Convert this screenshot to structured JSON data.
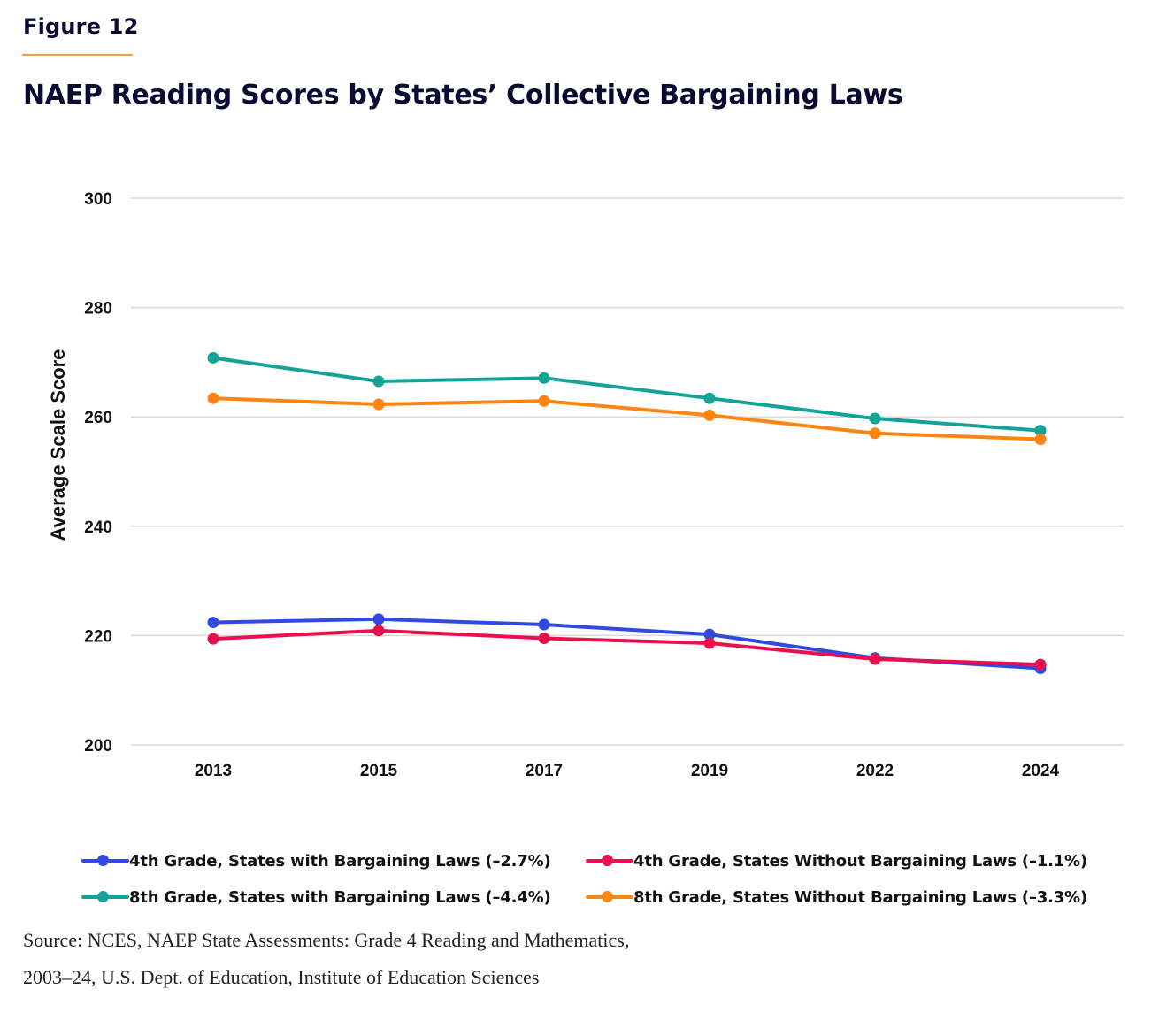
{
  "figure_label": "Figure 12",
  "title": "NAEP Reading Scores by States’ Collective Bargaining Laws",
  "source_lines": [
    "Source: NCES, NAEP State Assessments: Grade 4 Reading and Mathematics,",
    "2003–24, U.S. Dept. of Education, Institute of Education Sciences"
  ],
  "colors": {
    "grid": "#d9d9d9",
    "accent_rule": "#f0a040"
  },
  "chart_data": {
    "type": "line",
    "title": "NAEP Reading Scores by States’ Collective Bargaining Laws",
    "xlabel": "",
    "ylabel": "Average Scale Score",
    "x": [
      "2013",
      "2015",
      "2017",
      "2019",
      "2022",
      "2024"
    ],
    "ylim": [
      200,
      300
    ],
    "yticks": [
      200,
      220,
      240,
      260,
      280,
      300
    ],
    "grid": true,
    "legend_position": "bottom",
    "series": [
      {
        "name": "4th Grade, States with Bargaining Laws (–2.7%)",
        "color": "#2f4ae0",
        "values": [
          222.4,
          223.0,
          222.0,
          220.2,
          215.9,
          214.0
        ]
      },
      {
        "name": "4th Grade, States Without Bargaining Laws (–1.1%)",
        "color": "#e8104f",
        "values": [
          219.4,
          220.9,
          219.5,
          218.6,
          215.7,
          214.7
        ]
      },
      {
        "name": "8th Grade, States with Bargaining Laws (–4.4%)",
        "color": "#14a396",
        "values": [
          270.8,
          266.5,
          267.1,
          263.4,
          259.7,
          257.5
        ]
      },
      {
        "name": "8th Grade, States Without Bargaining Laws (–3.3%)",
        "color": "#ff8410",
        "values": [
          263.4,
          262.3,
          262.9,
          260.3,
          257.0,
          255.9
        ]
      }
    ]
  }
}
